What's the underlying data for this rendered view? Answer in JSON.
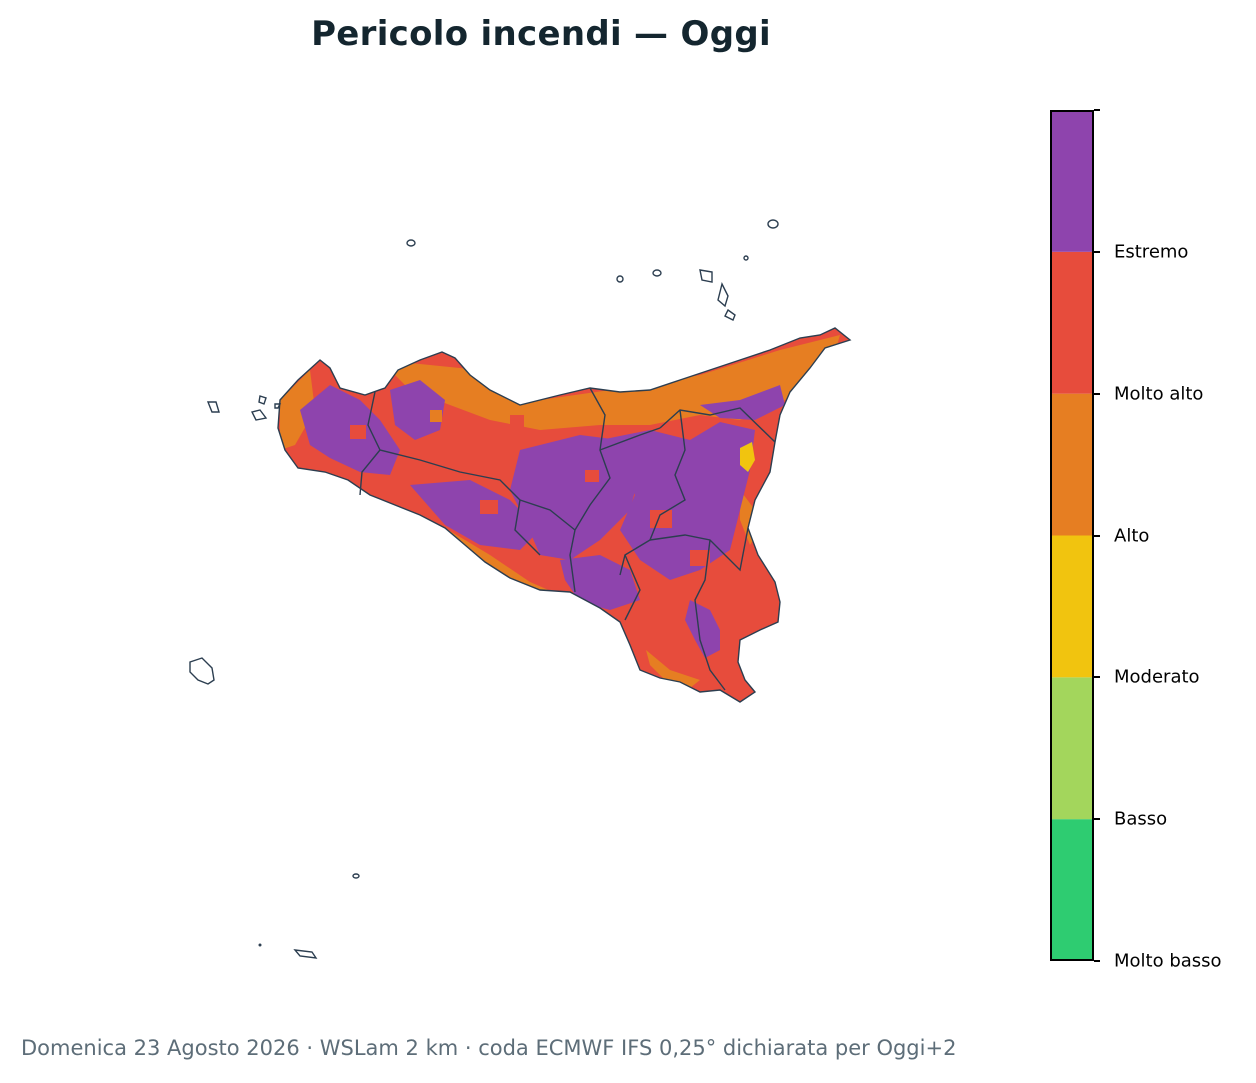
{
  "title": "Pericolo incendi — Oggi",
  "footer": "Domenica 23 Agosto 2026 · WSLam 2 km · coda ECMWF IFS 0,25° dichiarata per Oggi+2",
  "legend": {
    "classes": [
      {
        "label": "Molto basso",
        "color": "#2ecc71"
      },
      {
        "label": "Basso",
        "color": "#a3d65c"
      },
      {
        "label": "Moderato",
        "color": "#f1c40f"
      },
      {
        "label": "Alto",
        "color": "#e67e22"
      },
      {
        "label": "Molto alto",
        "color": "#e74c3c"
      },
      {
        "label": "Estremo",
        "color": "#8e44ad"
      }
    ]
  },
  "map": {
    "region": "Sicilia",
    "outline_color": "#2c3e50"
  }
}
